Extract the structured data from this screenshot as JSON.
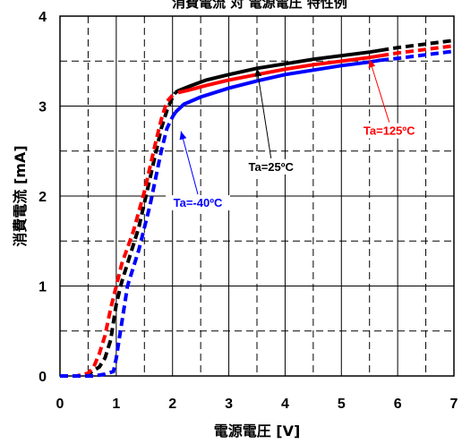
{
  "chart_data": {
    "type": "line",
    "title": "消費電流 対 電源電圧 特性例",
    "xlabel": "電源電圧 [V]",
    "ylabel": "消費電流 [mA]",
    "xlim": [
      0,
      7
    ],
    "ylim": [
      0,
      4
    ],
    "x_ticks": [
      "0",
      "1",
      "2",
      "3",
      "4",
      "5",
      "6",
      "7"
    ],
    "y_ticks": [
      "0",
      "1",
      "2",
      "3",
      "4"
    ],
    "grid": "major solid, minor dashed",
    "series": [
      {
        "name": "Ta=25ºC",
        "color": "#000000",
        "x": [
          0,
          0.3,
          0.5,
          0.7,
          0.8,
          0.9,
          1.0,
          1.1,
          1.2,
          1.4,
          1.6,
          1.8,
          1.9,
          2.0,
          2.05,
          2.1,
          2.3,
          2.6,
          3.0,
          3.5,
          4.0,
          4.5,
          5.0,
          5.5,
          5.7,
          6.0,
          6.5,
          7.0
        ],
        "y": [
          0,
          0,
          0.02,
          0.1,
          0.2,
          0.4,
          0.8,
          1.05,
          1.25,
          1.65,
          2.2,
          2.75,
          2.95,
          3.1,
          3.15,
          3.17,
          3.22,
          3.29,
          3.35,
          3.42,
          3.47,
          3.52,
          3.56,
          3.6,
          3.62,
          3.65,
          3.69,
          3.73
        ]
      },
      {
        "name": "Ta=125ºC",
        "color": "#ff0000",
        "x": [
          0,
          0.3,
          0.5,
          0.6,
          0.7,
          0.8,
          0.9,
          1.0,
          1.1,
          1.3,
          1.5,
          1.7,
          1.8,
          1.9,
          2.0,
          2.1,
          2.3,
          2.6,
          3.0,
          3.5,
          4.0,
          4.5,
          5.0,
          5.5,
          5.7,
          6.0,
          6.5,
          7.0
        ],
        "y": [
          0,
          0,
          0.03,
          0.1,
          0.25,
          0.45,
          0.75,
          1.0,
          1.25,
          1.6,
          2.05,
          2.6,
          2.85,
          3.05,
          3.12,
          3.15,
          3.18,
          3.23,
          3.29,
          3.35,
          3.41,
          3.46,
          3.5,
          3.54,
          3.56,
          3.59,
          3.63,
          3.67
        ]
      },
      {
        "name": "Ta=-40ºC",
        "color": "#0000ff",
        "x": [
          0,
          0.3,
          0.6,
          0.8,
          0.95,
          1.0,
          1.05,
          1.15,
          1.2,
          1.4,
          1.6,
          1.8,
          1.9,
          2.0,
          2.05,
          2.1,
          2.2,
          2.5,
          3.0,
          3.5,
          4.0,
          4.5,
          5.0,
          5.5,
          5.7,
          6.0,
          6.5,
          7.0
        ],
        "y": [
          0,
          0,
          0,
          0.02,
          0.05,
          0.2,
          0.4,
          0.8,
          1.0,
          1.4,
          1.9,
          2.5,
          2.75,
          2.88,
          2.93,
          2.96,
          3.02,
          3.1,
          3.2,
          3.28,
          3.35,
          3.4,
          3.45,
          3.49,
          3.51,
          3.53,
          3.57,
          3.61
        ]
      }
    ],
    "annotations": [
      {
        "text": "Ta=25ºC",
        "color": "#000000",
        "at": [
          3.75,
          2.28
        ],
        "arrow_to": [
          3.5,
          3.42
        ]
      },
      {
        "text": "Ta=125ºC",
        "color": "#ff0000",
        "at": [
          5.85,
          2.68
        ],
        "arrow_to": [
          5.5,
          3.52
        ]
      },
      {
        "text": "Ta=-40ºC",
        "color": "#0000ff",
        "at": [
          2.45,
          1.88
        ],
        "arrow_to": [
          2.15,
          2.72
        ]
      }
    ]
  }
}
